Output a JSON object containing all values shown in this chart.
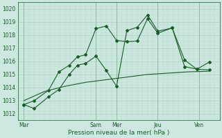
{
  "xlabel": "Pression niveau de la mer( hPa )",
  "bg_color": "#cce8e0",
  "line_color": "#1a5c28",
  "grid_color_major": "#a0c8b8",
  "grid_color_minor": "#b8d8cc",
  "ylim": [
    1011.5,
    1020.5
  ],
  "yticks": [
    1012,
    1013,
    1014,
    1015,
    1016,
    1017,
    1018,
    1019,
    1020
  ],
  "xlim": [
    -0.3,
    9.5
  ],
  "xtick_labels": [
    "Mar",
    "Sam",
    "Mer",
    "Jeu",
    "Ven"
  ],
  "xtick_positions": [
    0,
    3.5,
    4.5,
    6.5,
    8.5
  ],
  "vline_positions": [
    0,
    3.5,
    4.5,
    6.5,
    8.5
  ],
  "line1_x": [
    0,
    0.5,
    1.2,
    1.7,
    2.2,
    2.6,
    3.0,
    3.5,
    4.0,
    4.5,
    5.0,
    5.5,
    6.0,
    6.5,
    7.2,
    7.8,
    8.4,
    9.0
  ],
  "line1_y": [
    1012.7,
    1012.4,
    1013.3,
    1013.85,
    1015.0,
    1015.7,
    1015.85,
    1016.4,
    1015.3,
    1014.1,
    1018.35,
    1018.6,
    1019.55,
    1018.3,
    1018.55,
    1016.1,
    1015.4,
    1015.95
  ],
  "line2_x": [
    0,
    0.5,
    1.2,
    1.7,
    2.2,
    2.6,
    3.0,
    3.5,
    4.0,
    4.5,
    5.0,
    5.5,
    6.0,
    6.5,
    7.2,
    7.8,
    8.4,
    9.0
  ],
  "line2_y": [
    1012.7,
    1013.0,
    1013.8,
    1015.2,
    1015.7,
    1016.35,
    1016.5,
    1018.5,
    1018.7,
    1017.6,
    1017.5,
    1017.55,
    1019.25,
    1018.15,
    1018.55,
    1015.6,
    1015.4,
    1015.35
  ],
  "line3_x": [
    0,
    1.0,
    2.0,
    3.0,
    4.0,
    5.0,
    6.0,
    7.0,
    8.0,
    9.0
  ],
  "line3_y": [
    1013.0,
    1013.7,
    1014.1,
    1014.4,
    1014.6,
    1014.8,
    1015.0,
    1015.1,
    1015.2,
    1015.25
  ]
}
